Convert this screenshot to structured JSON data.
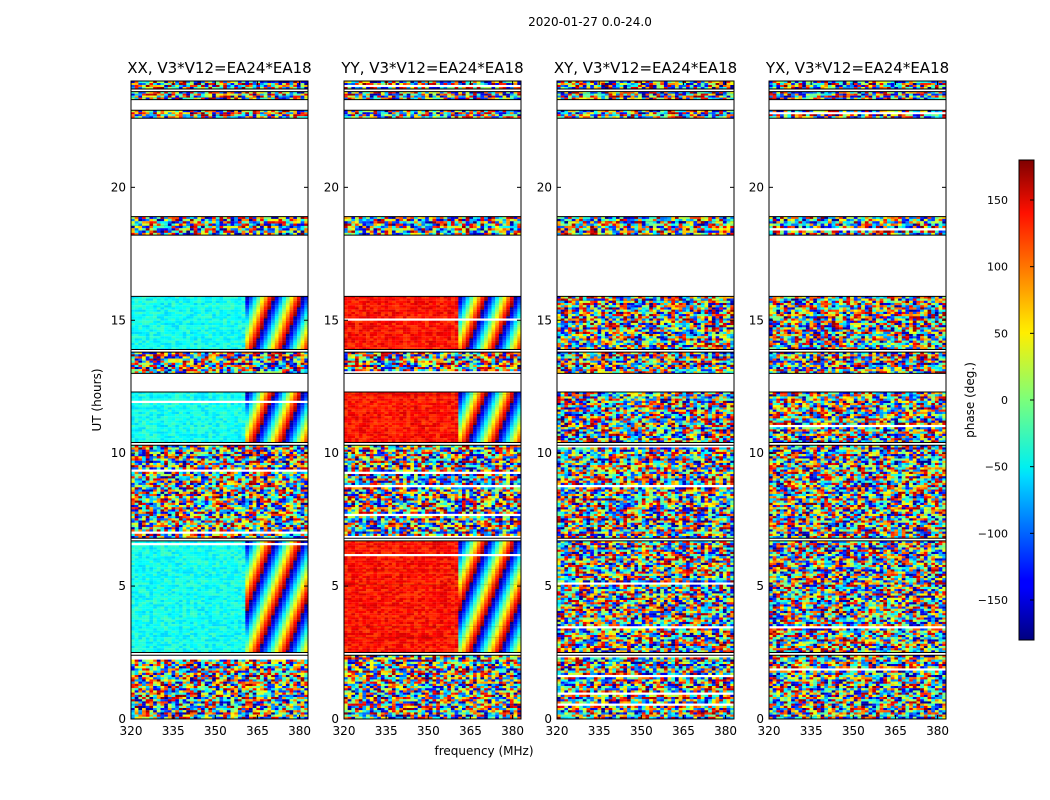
{
  "figure": {
    "suptitle": "2020-01-27 0.0-24.0",
    "xlabel": "frequency (MHz)",
    "ylabel": "UT (hours)"
  },
  "chart_data": {
    "type": "heatmap",
    "xlim": [
      320,
      383
    ],
    "ylim": [
      0,
      24
    ],
    "xticks": [
      320,
      335,
      350,
      365,
      380
    ],
    "yticks": [
      0,
      5,
      10,
      15,
      20
    ],
    "panels": [
      {
        "title": "XX, V3*V12=EA24*EA18",
        "polarization": "XX",
        "coherent_phase_deg": -40,
        "solid_region_freq": [
          320,
          361
        ]
      },
      {
        "title": "YY, V3*V12=EA24*EA18",
        "polarization": "YY",
        "coherent_phase_deg": 130,
        "solid_region_freq": [
          320,
          361
        ]
      },
      {
        "title": "XY, V3*V12=EA24*EA18",
        "polarization": "XY",
        "coherent_phase_deg": null,
        "solid_region_freq": null
      },
      {
        "title": "YX, V3*V12=EA24*EA18",
        "polarization": "YX",
        "coherent_phase_deg": null,
        "solid_region_freq": null
      }
    ],
    "data_blocks_ut": [
      [
        0,
        2.4,
        "noisy"
      ],
      [
        2.5,
        6.7,
        "coherent"
      ],
      [
        6.8,
        10.3,
        "noisy"
      ],
      [
        10.4,
        12.3,
        "coherent"
      ],
      [
        13.0,
        13.8,
        "noisy"
      ],
      [
        13.9,
        15.9,
        "coherent"
      ],
      [
        18.2,
        18.9,
        "noisy"
      ],
      [
        22.6,
        22.9,
        "noisy"
      ],
      [
        23.3,
        23.6,
        "noisy"
      ],
      [
        23.7,
        24.0,
        "noisy"
      ]
    ],
    "colorbar": {
      "label": "phase (deg.)",
      "range": [
        -180,
        180
      ],
      "ticks": [
        -150,
        -100,
        -50,
        0,
        50,
        100,
        150
      ],
      "tick_labels": [
        "−150",
        "−100",
        "−50",
        "0",
        "50",
        "100",
        "150"
      ],
      "colormap": "jet"
    }
  }
}
